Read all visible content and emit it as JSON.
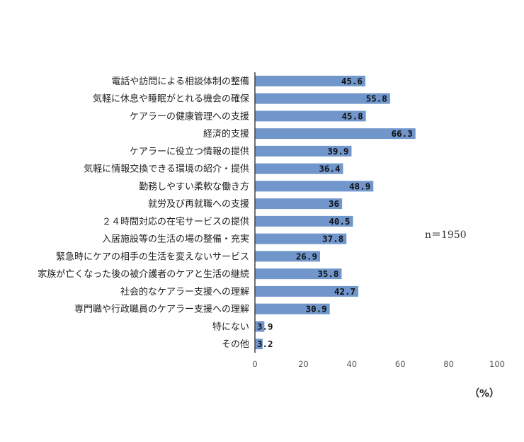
{
  "chart_data": {
    "type": "bar",
    "orientation": "horizontal",
    "categories": [
      "電話や訪問による相談体制の整備",
      "気軽に休息や睡眠がとれる機会の確保",
      "ケアラーの健康管理への支援",
      "経済的支援",
      "ケアラーに役立つ情報の提供",
      "気軽に情報交換できる環境の紹介・提供",
      "勤務しやすい柔軟な働き方",
      "就労及び再就職への支援",
      "２４時間対応の在宅サービスの提供",
      "入居施設等の生活の場の整備・充実",
      "緊急時にケアの相手の生活を変えないサービス",
      "家族が亡くなった後の被介護者のケアと生活の継続",
      "社会的なケアラー支援への理解",
      "専門職や行政職員のケアラー支援への理解",
      "特にない",
      "その他"
    ],
    "values": [
      45.6,
      55.8,
      45.8,
      66.3,
      39.9,
      36.4,
      48.9,
      36,
      40.5,
      37.8,
      26.9,
      35.8,
      42.7,
      30.9,
      3.9,
      3.2
    ],
    "value_labels": [
      "45.6",
      "55.8",
      "45.8",
      "66.3",
      "39.9",
      "36.4",
      "48.9",
      "36",
      "40.5",
      "37.8",
      "26.9",
      "35.8",
      "42.7",
      "30.9",
      "3.9",
      "3.2"
    ],
    "xlim": [
      0,
      100
    ],
    "xticks": [
      "0",
      "20",
      "40",
      "60",
      "80",
      "100"
    ],
    "unit_label": "（%）",
    "annotation": "n＝1950",
    "bar_color": "#7096cc",
    "grid": false,
    "legend": "none"
  }
}
